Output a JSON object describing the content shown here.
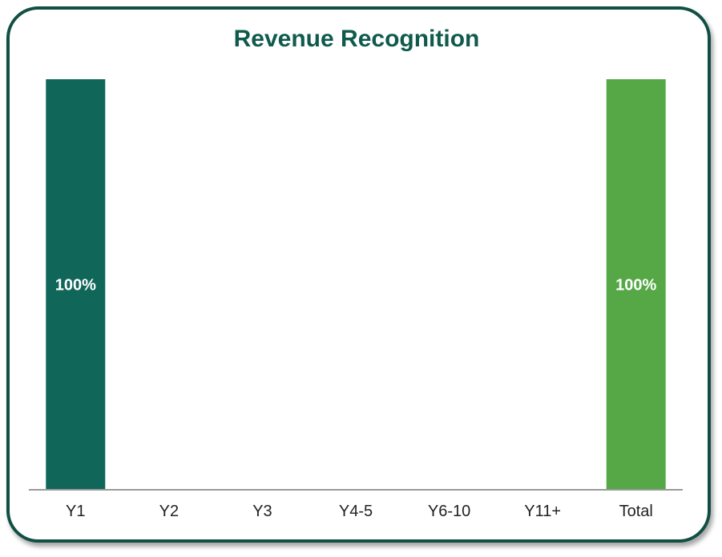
{
  "chart_data": {
    "type": "bar",
    "title": "Revenue Recognition",
    "xlabel": "",
    "ylabel": "",
    "categories": [
      "Y1",
      "Y2",
      "Y3",
      "Y4-5",
      "Y6-10",
      "Y11+",
      "Total"
    ],
    "values": [
      100,
      0,
      0,
      0,
      0,
      0,
      100
    ],
    "data_labels": [
      "100%",
      "",
      "",
      "",
      "",
      "",
      "100%"
    ],
    "colors": [
      "#11665a",
      "#11665a",
      "#11665a",
      "#11665a",
      "#11665a",
      "#11665a",
      "#55a845"
    ],
    "ylim": [
      0,
      100
    ],
    "grid": false,
    "legend": "none"
  },
  "colors": {
    "border": "#0f4f44",
    "title": "#0f5a4c",
    "axis": "#9a9a9a"
  }
}
